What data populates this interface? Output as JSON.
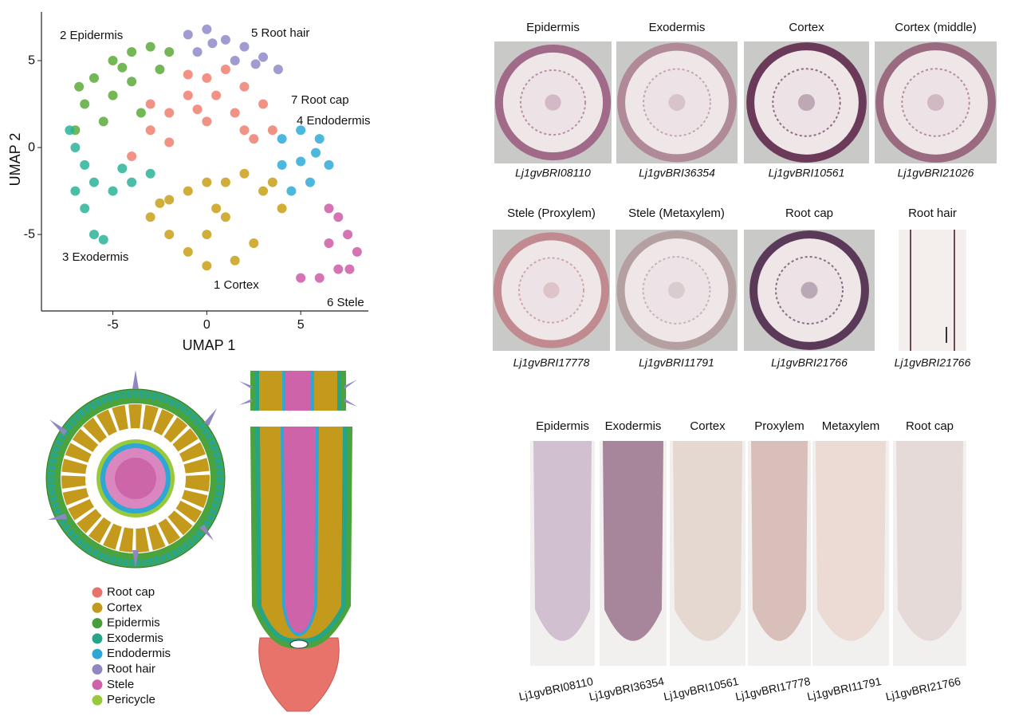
{
  "chart_data": {
    "type": "scatter",
    "xlabel": "UMAP 1",
    "ylabel": "UMAP 2",
    "xlim": [
      -8.8,
      8.6
    ],
    "ylim": [
      -9.4,
      7.8
    ],
    "xticks": [
      -5,
      0,
      5
    ],
    "yticks": [
      -5,
      0,
      5
    ],
    "series": [
      {
        "name": "1 Cortex",
        "color": "#c9a018",
        "x": [
          -3,
          -2,
          -1,
          0,
          1,
          2,
          3,
          4,
          1,
          0,
          -1,
          0,
          1.5,
          2.5,
          -2,
          -2.5,
          0.5,
          3.5
        ],
        "values": [
          -4,
          -3,
          -2.5,
          -2,
          -2,
          -1.5,
          -2.5,
          -3.5,
          -4,
          -5,
          -6,
          -6.8,
          -6.5,
          -5.5,
          -5,
          -3.2,
          -3.5,
          -2
        ]
      },
      {
        "name": "2 Epidermis",
        "color": "#5aaa3a",
        "x": [
          -6,
          -5,
          -4,
          -3,
          -2.5,
          -6.5,
          -5,
          -4,
          -7,
          -3.5,
          -5.5,
          -6.8,
          -4.5,
          -2
        ],
        "values": [
          4,
          5,
          5.5,
          5.8,
          4.5,
          2.5,
          3,
          3.8,
          1,
          2,
          1.5,
          3.5,
          4.6,
          5.5
        ]
      },
      {
        "name": "3 Exodermis",
        "color": "#2ab397",
        "x": [
          -7,
          -6.5,
          -6,
          -5,
          -4,
          -3,
          -6.5,
          -6,
          -5.5,
          -7,
          -7.3,
          -4.5
        ],
        "values": [
          0,
          -1,
          -2,
          -2.5,
          -2,
          -1.5,
          -3.5,
          -5,
          -5.3,
          -2.5,
          1,
          -1.2
        ]
      },
      {
        "name": "4 Endodermis",
        "color": "#2eaad8",
        "x": [
          4,
          5,
          6,
          6.5,
          5.5,
          4.5,
          4,
          5.8,
          5
        ],
        "values": [
          0.5,
          1,
          0.5,
          -1,
          -2,
          -2.5,
          -1,
          -0.3,
          -0.8
        ]
      },
      {
        "name": "5 Root hair",
        "color": "#8f8ac8",
        "x": [
          -1,
          0,
          1,
          2,
          3,
          3.8,
          -0.5,
          1.5,
          0.3,
          2.6
        ],
        "values": [
          6.5,
          6.8,
          6.2,
          5.8,
          5.2,
          4.5,
          5.5,
          5,
          6,
          4.8
        ]
      },
      {
        "name": "6 Stele",
        "color": "#cf5aa8",
        "x": [
          7,
          7.5,
          8,
          6.5,
          7,
          6,
          5,
          6.5,
          7.6
        ],
        "values": [
          -4,
          -5,
          -6,
          -5.5,
          -7,
          -7.5,
          -7.5,
          -3.5,
          -7
        ]
      },
      {
        "name": "7 Root cap",
        "color": "#f07f6f",
        "x": [
          -4,
          -3,
          -2,
          -1,
          0,
          1,
          2,
          3,
          3.5,
          2.5,
          0,
          -2,
          1.5,
          -1,
          0.5,
          2,
          -3,
          -0.5
        ],
        "values": [
          -0.5,
          1,
          2,
          3,
          4,
          4.5,
          3.5,
          2.5,
          1,
          0.5,
          1.5,
          0.3,
          2,
          4.2,
          3,
          1,
          2.5,
          2.2
        ]
      }
    ]
  },
  "sections_row1": [
    {
      "title": "Epidermis",
      "gene": "Lj1gvBRI08110"
    },
    {
      "title": "Exodermis",
      "gene": "Lj1gvBRI36354"
    },
    {
      "title": "Cortex",
      "gene": "Lj1gvBRI10561"
    },
    {
      "title": "Cortex (middle)",
      "gene": "Lj1gvBRI21026"
    }
  ],
  "sections_row2": [
    {
      "title": "Stele (Proxylem)",
      "gene": "Lj1gvBRI17778"
    },
    {
      "title": "Stele (Metaxylem)",
      "gene": "Lj1gvBRI11791"
    },
    {
      "title": "Root cap",
      "gene": "Lj1gvBRI21766"
    },
    {
      "title": "Root hair",
      "gene": "Lj1gvBRI21766"
    }
  ],
  "longitudinal": [
    {
      "title": "Epidermis",
      "gene": "Lj1gvBRI08110"
    },
    {
      "title": "Exodermis",
      "gene": "Lj1gvBRI36354"
    },
    {
      "title": "Cortex",
      "gene": "Lj1gvBRI10561"
    },
    {
      "title": "Proxylem",
      "gene": "Lj1gvBRI17778"
    },
    {
      "title": "Metaxylem",
      "gene": "Lj1gvBRI11791"
    },
    {
      "title": "Root cap",
      "gene": "Lj1gvBRI21766"
    }
  ],
  "legend": [
    {
      "label": "Root cap",
      "color": "#e8736a"
    },
    {
      "label": "Cortex",
      "color": "#c49a1c"
    },
    {
      "label": "Epidermis",
      "color": "#4a9e3a"
    },
    {
      "label": "Exodermis",
      "color": "#26a487"
    },
    {
      "label": "Endodermis",
      "color": "#2ea6d6"
    },
    {
      "label": "Root hair",
      "color": "#8f86c2"
    },
    {
      "label": "Stele",
      "color": "#cf63aa"
    },
    {
      "label": "Pericycle",
      "color": "#97c93a"
    }
  ]
}
